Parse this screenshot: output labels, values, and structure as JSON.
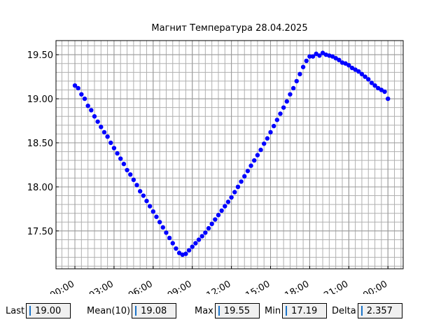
{
  "chart_data": {
    "type": "scatter",
    "title": "Магнит Температура 28.04.2025",
    "color": "#0000ff",
    "grid": true,
    "xlim": [
      -1.45,
      25.17
    ],
    "ylim": [
      17.07,
      19.66
    ],
    "xticks": [
      {
        "value": 0,
        "label": "00:00"
      },
      {
        "value": 3,
        "label": "03:00"
      },
      {
        "value": 6,
        "label": "06:00"
      },
      {
        "value": 9,
        "label": "09:00"
      },
      {
        "value": 12,
        "label": "12:00"
      },
      {
        "value": 15,
        "label": "15:00"
      },
      {
        "value": 18,
        "label": "18:00"
      },
      {
        "value": 21,
        "label": "21:00"
      },
      {
        "value": 24,
        "label": "00:00"
      }
    ],
    "yticks": [
      {
        "value": 17.5,
        "label": "17.50"
      },
      {
        "value": 18,
        "label": "18.00"
      },
      {
        "value": 18.5,
        "label": "18.50"
      },
      {
        "value": 19,
        "label": "19.00"
      },
      {
        "value": 19.5,
        "label": "19.50"
      }
    ],
    "xminorticks": [
      -1,
      -0.5,
      0,
      0.5,
      1,
      1.5,
      2,
      2.5,
      3,
      3.5,
      4,
      4.5,
      5,
      5.5,
      6,
      6.5,
      7,
      7.5,
      8,
      8.5,
      9,
      9.5,
      10,
      10.5,
      11,
      11.5,
      12,
      12.5,
      13,
      13.5,
      14,
      14.5,
      15,
      15.5,
      16,
      16.5,
      17,
      17.5,
      18,
      18.5,
      19,
      19.5,
      20,
      20.5,
      21,
      21.5,
      22,
      22.5,
      23,
      23.5,
      24,
      24.5,
      25
    ],
    "yminorticks": [
      17.1,
      17.2,
      17.3,
      17.4,
      17.5,
      17.6,
      17.7,
      17.8,
      17.9,
      18,
      18.1,
      18.2,
      18.3,
      18.4,
      18.5,
      18.6,
      18.7,
      18.8,
      18.9,
      19,
      19.1,
      19.2,
      19.3,
      19.4,
      19.5,
      19.6
    ],
    "x": [
      0,
      0.25,
      0.5,
      0.75,
      1,
      1.25,
      1.5,
      1.75,
      2,
      2.25,
      2.5,
      2.75,
      3,
      3.25,
      3.5,
      3.75,
      4,
      4.25,
      4.5,
      4.75,
      5,
      5.25,
      5.5,
      5.75,
      6,
      6.25,
      6.5,
      6.75,
      7,
      7.25,
      7.5,
      7.75,
      8,
      8.25,
      8.5,
      8.75,
      9,
      9.25,
      9.5,
      9.75,
      10,
      10.25,
      10.5,
      10.75,
      11,
      11.25,
      11.5,
      11.75,
      12,
      12.25,
      12.5,
      12.75,
      13,
      13.25,
      13.5,
      13.75,
      14,
      14.25,
      14.5,
      14.75,
      15,
      15.25,
      15.5,
      15.75,
      16,
      16.25,
      16.5,
      16.75,
      17,
      17.25,
      17.5,
      17.75,
      18,
      18.25,
      18.5,
      18.75,
      19,
      19.25,
      19.5,
      19.75,
      20,
      20.25,
      20.5,
      20.75,
      21,
      21.25,
      21.5,
      21.75,
      22,
      22.25,
      22.5,
      22.75,
      23,
      23.25,
      23.5,
      23.75,
      24
    ],
    "values": [
      19.15,
      19.12,
      19.05,
      19.0,
      18.92,
      18.87,
      18.8,
      18.74,
      18.68,
      18.62,
      18.57,
      18.5,
      18.44,
      18.38,
      18.32,
      18.26,
      18.19,
      18.14,
      18.08,
      18.02,
      17.95,
      17.9,
      17.84,
      17.78,
      17.72,
      17.66,
      17.6,
      17.54,
      17.48,
      17.42,
      17.36,
      17.3,
      17.25,
      17.23,
      17.24,
      17.28,
      17.32,
      17.36,
      17.4,
      17.44,
      17.48,
      17.53,
      17.58,
      17.63,
      17.68,
      17.73,
      17.78,
      17.83,
      17.88,
      17.94,
      18.0,
      18.06,
      18.12,
      18.18,
      18.24,
      18.3,
      18.36,
      18.42,
      18.49,
      18.55,
      18.62,
      18.69,
      18.76,
      18.83,
      18.9,
      18.97,
      19.05,
      19.12,
      19.2,
      19.28,
      19.36,
      19.43,
      19.48,
      19.48,
      19.51,
      19.49,
      19.52,
      19.5,
      19.49,
      19.48,
      19.46,
      19.44,
      19.41,
      19.4,
      19.38,
      19.35,
      19.33,
      19.31,
      19.28,
      19.25,
      19.22,
      19.18,
      19.15,
      19.12,
      19.1,
      19.08,
      19.0
    ]
  },
  "fields": [
    {
      "label": "Last",
      "value": "19.00"
    },
    {
      "label": "Mean(10)",
      "value": "19.08"
    },
    {
      "label": "Max",
      "value": "19.55"
    },
    {
      "label": "Min",
      "value": "17.19"
    },
    {
      "label": "Delta",
      "value": "2.357"
    }
  ]
}
